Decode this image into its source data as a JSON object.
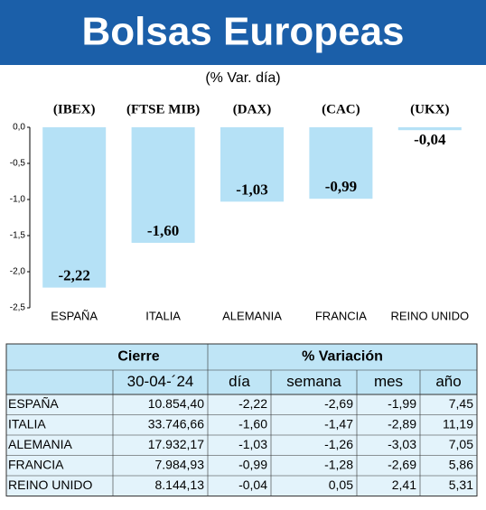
{
  "chart_data": {
    "type": "bar",
    "title": "Bolsas Europeas",
    "subtitle": "(% Var. día)",
    "categories": [
      "ESPAÑA",
      "ITALIA",
      "ALEMANIA",
      "FRANCIA",
      "REINO UNIDO"
    ],
    "category_codes": [
      "(IBEX)",
      "(FTSE MIB)",
      "(DAX)",
      "(CAC)",
      "(UKX)"
    ],
    "values": [
      -2.22,
      -1.6,
      -1.03,
      -0.99,
      -0.04
    ],
    "value_labels": [
      "-2,22",
      "-1,60",
      "-1,03",
      "-0,99",
      "-0,04"
    ],
    "color": "#b5e1f6",
    "ylim": [
      0,
      -2.5
    ],
    "yticks": [
      {
        "value": 0,
        "label": "0,0"
      },
      {
        "value": -0.5,
        "label": "-0,5"
      },
      {
        "value": -1,
        "label": "-1,0"
      },
      {
        "value": -1.5,
        "label": "-1,5"
      },
      {
        "value": -2,
        "label": "-2,0"
      },
      {
        "value": -2.5,
        "label": "-2,5"
      }
    ],
    "grid": false
  },
  "table": {
    "header": [
      "Cierre",
      "% Variación"
    ],
    "subheader": [
      "30-04-´24",
      "día",
      "semana",
      "mes",
      "año"
    ],
    "rows": [
      [
        "ESPAÑA",
        "10.854,40",
        "-2,22",
        "-2,69",
        "-1,99",
        "7,45"
      ],
      [
        "ITALIA",
        "33.746,66",
        "-1,60",
        "-1,47",
        "-2,89",
        "11,19"
      ],
      [
        "ALEMANIA",
        "17.932,17",
        "-1,03",
        "-1,26",
        "-3,03",
        "7,05"
      ],
      [
        "FRANCIA",
        "7.984,93",
        "-0,99",
        "-1,28",
        "-2,69",
        "5,86"
      ],
      [
        "REINO UNIDO",
        "8.144,13",
        "-0,04",
        "0,05",
        "2,41",
        "5,31"
      ]
    ]
  }
}
